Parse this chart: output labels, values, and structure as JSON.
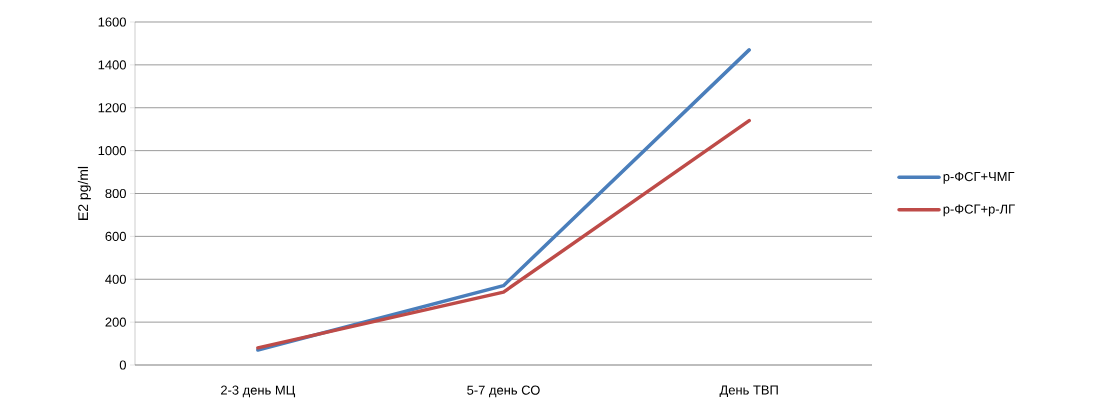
{
  "chart_data": {
    "type": "line",
    "ylabel": "E2 pg/ml",
    "categories": [
      "2-3 день МЦ",
      "5-7 день СО",
      "День ТВП"
    ],
    "series": [
      {
        "name": "р-ФСГ+ЧМГ",
        "color": "#4a7ebb",
        "values": [
          70,
          370,
          1470
        ]
      },
      {
        "name": "р-ФСГ+р-ЛГ",
        "color": "#be4b48",
        "values": [
          80,
          340,
          1140
        ]
      }
    ],
    "ylim": [
      0,
      1600
    ],
    "yticks": [
      0,
      200,
      400,
      600,
      800,
      1000,
      1200,
      1400,
      1600
    ],
    "grid": "y",
    "legend": "right"
  }
}
